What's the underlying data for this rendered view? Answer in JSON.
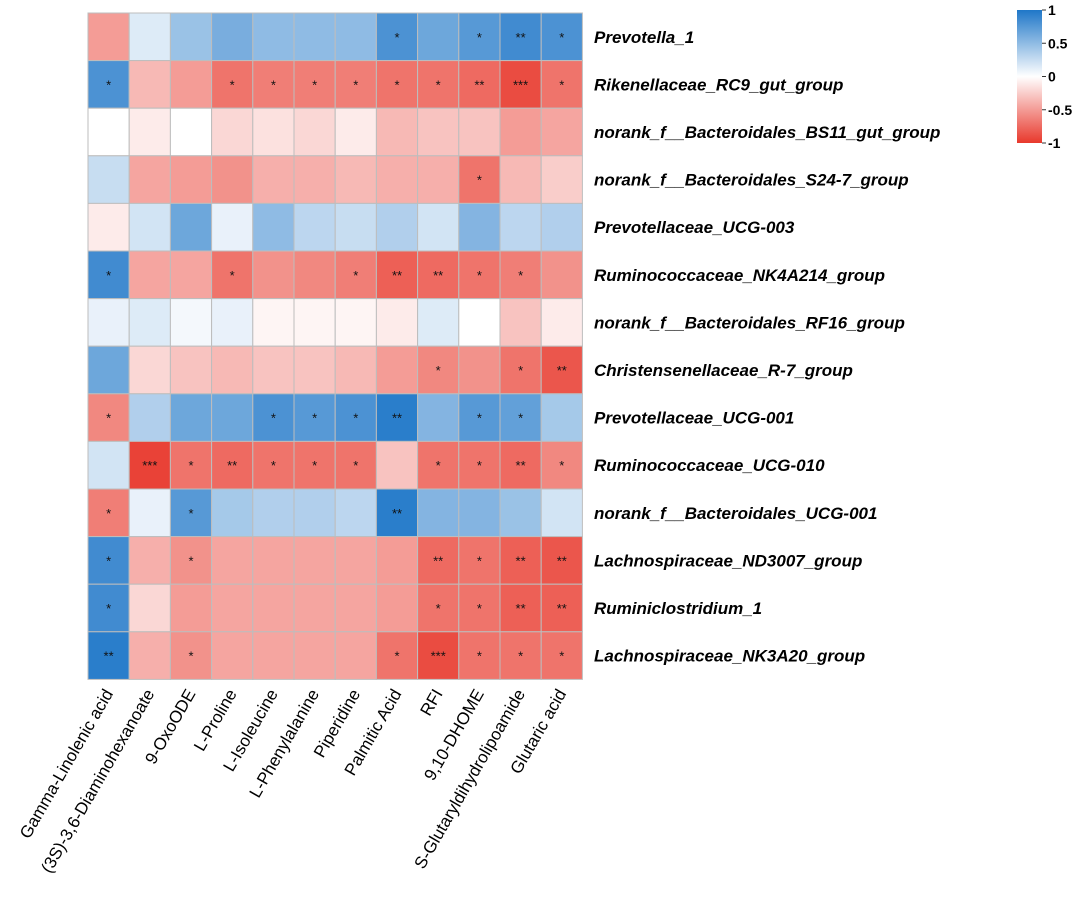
{
  "chart_data": {
    "type": "heatmap",
    "columns": [
      "Gamma-Linolenic acid",
      "(3S)-3,6-Diaminohexanoate",
      "9-OxoODE",
      "L-Proline",
      "L-Isoleucine",
      "L-Phenylalanine",
      "Piperidine",
      "Palmitic Acid",
      "RFI",
      "9,10-DHOME",
      "S-Glutaryldihydrolipoamide",
      "Glutaric acid"
    ],
    "rows": [
      "Prevotella_1",
      "Rikenellaceae_RC9_gut_group",
      "norank_f__Bacteroidales_BS11_gut_group",
      "norank_f__Bacteroidales_S24-7_group",
      "Prevotellaceae_UCG-003",
      "Ruminococcaceae_NK4A214_group",
      "norank_f__Bacteroidales_RF16_group",
      "Christensenellaceae_R-7_group",
      "Prevotellaceae_UCG-001",
      "Ruminococcaceae_UCG-010",
      "norank_f__Bacteroidales_UCG-001",
      "Lachnospiraceae_ND3007_group",
      "Ruminiclostridium_1",
      "Lachnospiraceae_NK3A20_group"
    ],
    "values": [
      [
        -0.5,
        0.15,
        0.45,
        0.6,
        0.5,
        0.5,
        0.5,
        0.8,
        0.65,
        0.75,
        0.85,
        0.8
      ],
      [
        0.8,
        -0.35,
        -0.5,
        -0.7,
        -0.65,
        -0.65,
        -0.65,
        -0.7,
        -0.7,
        -0.75,
        -0.9,
        -0.7
      ],
      [
        0.0,
        -0.1,
        0.0,
        -0.2,
        -0.15,
        -0.2,
        -0.1,
        -0.35,
        -0.3,
        -0.3,
        -0.5,
        -0.45
      ],
      [
        0.25,
        -0.45,
        -0.5,
        -0.55,
        -0.4,
        -0.4,
        -0.35,
        -0.4,
        -0.4,
        -0.7,
        -0.35,
        -0.25
      ],
      [
        -0.1,
        0.2,
        0.65,
        0.1,
        0.5,
        0.3,
        0.25,
        0.35,
        0.2,
        0.55,
        0.3,
        0.35
      ],
      [
        0.85,
        -0.45,
        -0.45,
        -0.7,
        -0.55,
        -0.6,
        -0.65,
        -0.8,
        -0.75,
        -0.7,
        -0.65,
        -0.55
      ],
      [
        0.1,
        0.15,
        0.05,
        0.1,
        -0.05,
        -0.05,
        -0.05,
        -0.1,
        0.15,
        0.0,
        -0.3,
        -0.1
      ],
      [
        0.65,
        -0.2,
        -0.3,
        -0.35,
        -0.3,
        -0.3,
        -0.35,
        -0.5,
        -0.6,
        -0.55,
        -0.7,
        -0.85
      ],
      [
        -0.6,
        0.35,
        0.65,
        0.65,
        0.8,
        0.75,
        0.8,
        0.95,
        0.55,
        0.75,
        0.7,
        0.4
      ],
      [
        0.2,
        -0.95,
        -0.7,
        -0.75,
        -0.7,
        -0.7,
        -0.7,
        -0.3,
        -0.7,
        -0.7,
        -0.75,
        -0.6
      ],
      [
        -0.65,
        0.1,
        0.75,
        0.4,
        0.35,
        0.35,
        0.3,
        0.95,
        0.55,
        0.55,
        0.45,
        0.2
      ],
      [
        0.85,
        -0.4,
        -0.55,
        -0.45,
        -0.45,
        -0.45,
        -0.45,
        -0.5,
        -0.75,
        -0.7,
        -0.8,
        -0.85
      ],
      [
        0.85,
        -0.2,
        -0.5,
        -0.45,
        -0.45,
        -0.45,
        -0.45,
        -0.5,
        -0.7,
        -0.7,
        -0.8,
        -0.8
      ],
      [
        0.95,
        -0.4,
        -0.55,
        -0.45,
        -0.45,
        -0.45,
        -0.45,
        -0.7,
        -0.9,
        -0.7,
        -0.7,
        -0.7
      ]
    ],
    "significance": [
      [
        "",
        "",
        "",
        "",
        "",
        "",
        "",
        "*",
        "",
        "*",
        "**",
        "*"
      ],
      [
        "*",
        "",
        "",
        "*",
        "*",
        "*",
        "*",
        "*",
        "*",
        "**",
        "***",
        "*"
      ],
      [
        "",
        "",
        "",
        "",
        "",
        "",
        "",
        "",
        "",
        "",
        "",
        ""
      ],
      [
        "",
        "",
        "",
        "",
        "",
        "",
        "",
        "",
        "",
        "*",
        "",
        ""
      ],
      [
        "",
        "",
        "",
        "",
        "",
        "",
        "",
        "",
        "",
        "",
        "",
        ""
      ],
      [
        "*",
        "",
        "",
        "*",
        "",
        "",
        "*",
        "**",
        "**",
        "*",
        "*",
        ""
      ],
      [
        "",
        "",
        "",
        "",
        "",
        "",
        "",
        "",
        "",
        "",
        "",
        ""
      ],
      [
        "",
        "",
        "",
        "",
        "",
        "",
        "",
        "",
        "*",
        "",
        "*",
        "**"
      ],
      [
        "*",
        "",
        "",
        "",
        "*",
        "*",
        "*",
        "**",
        "",
        "*",
        "*",
        ""
      ],
      [
        "",
        "***",
        "*",
        "**",
        "*",
        "*",
        "*",
        "",
        "*",
        "*",
        "**",
        "*"
      ],
      [
        "*",
        "",
        "*",
        "",
        "",
        "",
        "",
        "**",
        "",
        "",
        "",
        ""
      ],
      [
        "*",
        "",
        "*",
        "",
        "",
        "",
        "",
        "",
        "**",
        "*",
        "**",
        "**"
      ],
      [
        "*",
        "",
        "",
        "",
        "",
        "",
        "",
        "",
        "*",
        "*",
        "**",
        "**"
      ],
      [
        "**",
        "",
        "*",
        "",
        "",
        "",
        "",
        "*",
        "***",
        "*",
        "*",
        "*"
      ]
    ],
    "legend": {
      "ticks": [
        "1",
        "0.5",
        "0",
        "-0.5",
        "-1"
      ],
      "tick_values": [
        1,
        0.5,
        0,
        -0.5,
        -1
      ],
      "range": [
        -1,
        1
      ],
      "colors": {
        "high": "#1f77c8",
        "mid": "#ffffff",
        "low": "#e8382c"
      },
      "placement": "top-right"
    },
    "title": "",
    "xlabel": "",
    "ylabel": ""
  }
}
